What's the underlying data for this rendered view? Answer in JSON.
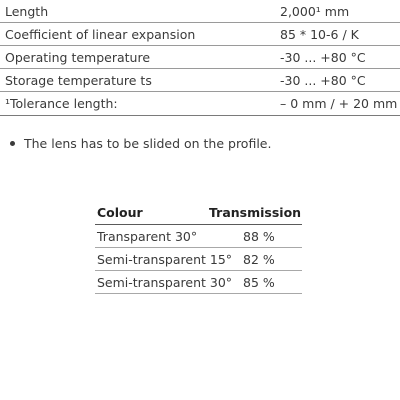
{
  "specs": {
    "rows": [
      {
        "label": "Length",
        "value": "2,000¹ mm"
      },
      {
        "label": "Coefficient of linear expansion",
        "value": "85 * 10-6 / K"
      },
      {
        "label": "Operating temperature",
        "value": "-30 ... +80 °C"
      },
      {
        "label": "Storage temperature ts",
        "value": "-30 ... +80 °C"
      }
    ],
    "footnote": {
      "label": "¹Tolerance length:",
      "value": "– 0 mm / + 20 mm"
    }
  },
  "note": "The lens has to be slided on the profile.",
  "transmission_table": {
    "headers": {
      "colour": "Colour",
      "transmission": "Transmission"
    },
    "rows": [
      {
        "colour": "Transparent 30°",
        "transmission": "88 %"
      },
      {
        "colour": "Semi-transparent 15°",
        "transmission": "82 %"
      },
      {
        "colour": "Semi-transparent 30°",
        "transmission": "85 %"
      }
    ]
  }
}
